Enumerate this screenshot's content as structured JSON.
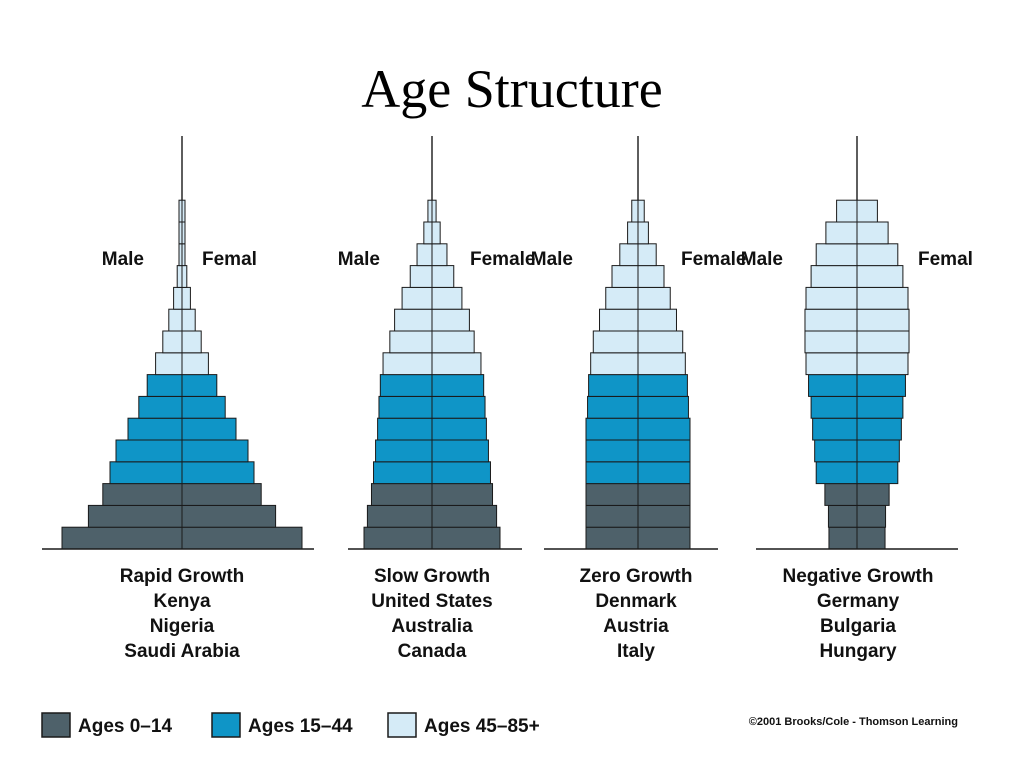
{
  "title": "Age Structure",
  "colors": {
    "young": "#4e616a",
    "mid": "#0f95c7",
    "old": "#d5ebf7",
    "stroke": "#1a1a1a"
  },
  "legend": [
    {
      "label": "Ages 0–14",
      "color": "#4e616a"
    },
    {
      "label": "Ages 15–44",
      "color": "#0f95c7"
    },
    {
      "label": "Ages 45–85+",
      "color": "#d5ebf7"
    }
  ],
  "copyright": "©2001 Brooks/Cole - Thomson Learning",
  "chart_data": [
    {
      "type": "population-pyramid",
      "male_label": "Male",
      "female_label": "Femal",
      "caption": [
        "Rapid Growth",
        "Kenya",
        "Nigeria",
        "Saudi Arabia"
      ],
      "cohorts_bottom_to_top": [
        {
          "group": "Ages 0–14",
          "relative_width": [
            1.0,
            0.78,
            0.66
          ]
        },
        {
          "group": "Ages 15–44",
          "relative_width": [
            0.6,
            0.55,
            0.45,
            0.36,
            0.29
          ]
        },
        {
          "group": "Ages 45–85+",
          "relative_width": [
            0.22,
            0.16,
            0.11,
            0.07,
            0.04,
            0.02,
            0.01,
            0.01
          ]
        }
      ]
    },
    {
      "type": "population-pyramid",
      "male_label": "Male",
      "female_label": "Female",
      "caption": [
        "Slow Growth",
        "United States",
        "Australia",
        "Canada"
      ],
      "cohorts_bottom_to_top": [
        {
          "group": "Ages 0–14",
          "relative_width": [
            1.0,
            0.95,
            0.89
          ]
        },
        {
          "group": "Ages 15–44",
          "relative_width": [
            0.86,
            0.83,
            0.8,
            0.78,
            0.76
          ]
        },
        {
          "group": "Ages 45–85+",
          "relative_width": [
            0.72,
            0.62,
            0.55,
            0.44,
            0.32,
            0.22,
            0.12,
            0.06
          ]
        }
      ]
    },
    {
      "type": "population-pyramid",
      "male_label": "Male",
      "female_label": "Female",
      "caption": [
        "Zero Growth",
        "Denmark",
        "Austria",
        "Italy"
      ],
      "cohorts_bottom_to_top": [
        {
          "group": "Ages 0–14",
          "relative_width": [
            1.0,
            1.0,
            1.0
          ]
        },
        {
          "group": "Ages 15–44",
          "relative_width": [
            1.0,
            1.0,
            1.0,
            0.97,
            0.95
          ]
        },
        {
          "group": "Ages 45–85+",
          "relative_width": [
            0.91,
            0.86,
            0.74,
            0.62,
            0.5,
            0.35,
            0.2,
            0.12
          ]
        }
      ]
    },
    {
      "type": "population-pyramid",
      "male_label": "Male",
      "female_label": "Femal",
      "caption": [
        "Negative Growth",
        "Germany",
        "Bulgaria",
        "Hungary"
      ],
      "cohorts_bottom_to_top": [
        {
          "group": "Ages 0–14",
          "relative_width": [
            0.55,
            0.56,
            0.63
          ]
        },
        {
          "group": "Ages 15–44",
          "relative_width": [
            0.8,
            0.83,
            0.87,
            0.9,
            0.95
          ]
        },
        {
          "group": "Ages 45–85+",
          "relative_width": [
            1.0,
            1.02,
            1.02,
            1.0,
            0.9,
            0.8,
            0.61,
            0.4
          ]
        }
      ]
    }
  ]
}
